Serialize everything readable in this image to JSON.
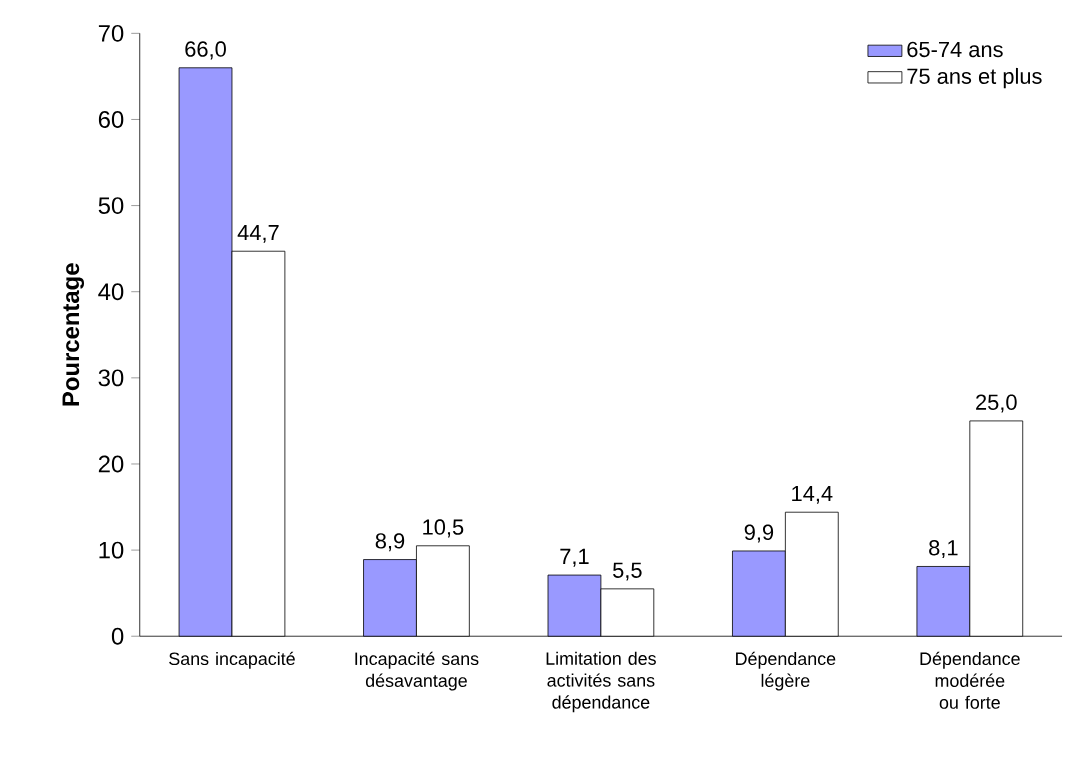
{
  "chart_data": {
    "type": "bar",
    "ylabel": "Pourcentage",
    "categories": [
      "Sans incapacité",
      "Incapacité sans désavantage",
      "Limitation des activités sans dépendance",
      "Dépendance légère",
      "Dépendance modérée ou forte"
    ],
    "series": [
      {
        "name": "65-74 ans",
        "color": "#9999ff",
        "values": [
          66.0,
          8.9,
          7.1,
          9.9,
          8.1
        ],
        "value_labels": [
          "66,0",
          "8,9",
          "7,1",
          "9,9",
          "8,1"
        ]
      },
      {
        "name": "75 ans et plus",
        "color": "#ffffff",
        "values": [
          44.7,
          10.5,
          5.5,
          14.4,
          25.0
        ],
        "value_labels": [
          "44,7",
          "10,5",
          "5,5",
          "14,4",
          "25,0"
        ]
      }
    ],
    "ylim": [
      0,
      70
    ],
    "yticks": [
      0,
      10,
      20,
      30,
      40,
      50,
      60,
      70
    ],
    "grid": false,
    "legend": "top right"
  }
}
